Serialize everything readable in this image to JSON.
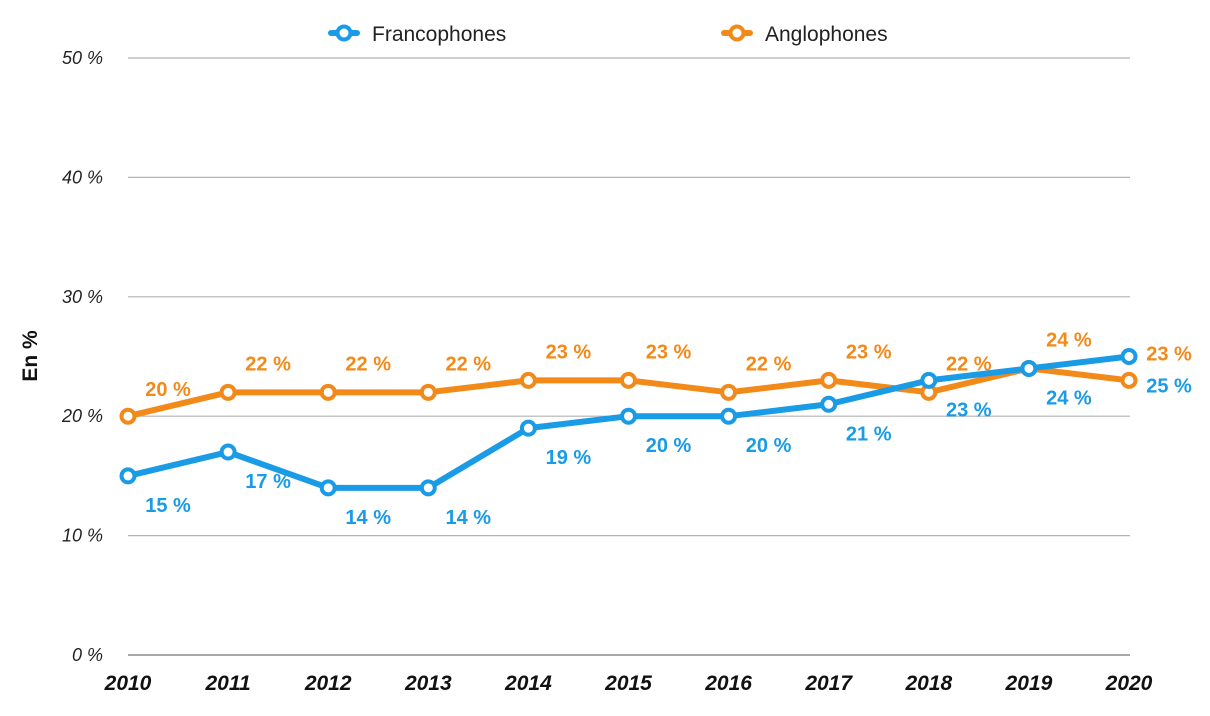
{
  "chart_data": {
    "type": "line",
    "title": "",
    "xlabel": "",
    "ylabel": "En %",
    "x": [
      "2010",
      "2011",
      "2012",
      "2013",
      "2014",
      "2015",
      "2016",
      "2017",
      "2018",
      "2019",
      "2020"
    ],
    "ylim": [
      0,
      50
    ],
    "yticks": [
      0,
      10,
      20,
      30,
      40,
      50
    ],
    "ytick_labels": [
      "0 %",
      "10 %",
      "20 %",
      "30 %",
      "40 %",
      "50 %"
    ],
    "grid": true,
    "legend_position": "top-center",
    "series": [
      {
        "name": "Francophones",
        "color": "#1a9be6",
        "values": [
          15,
          17,
          14,
          14,
          19,
          20,
          20,
          21,
          23,
          24,
          25
        ],
        "labels": [
          "15 %",
          "17 %",
          "14 %",
          "14 %",
          "19 %",
          "20 %",
          "20 %",
          "21 %",
          "23 %",
          "24 %",
          "25 %"
        ]
      },
      {
        "name": "Anglophones",
        "color": "#f28a1a",
        "values": [
          20,
          22,
          22,
          22,
          23,
          23,
          22,
          23,
          22,
          24,
          23
        ],
        "labels": [
          "20 %",
          "22 %",
          "22 %",
          "22 %",
          "23 %",
          "23 %",
          "22 %",
          "23 %",
          "22 %",
          "24 %",
          "23 %"
        ]
      }
    ]
  }
}
